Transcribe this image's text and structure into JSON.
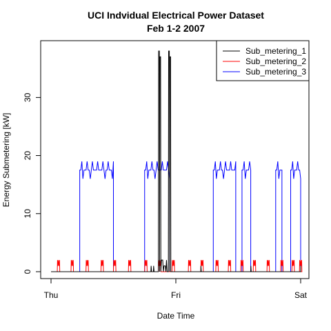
{
  "chart_data": {
    "type": "line",
    "title": "UCI Indvidual Electrical Power Dataset",
    "subtitle": "Feb 1-2 2007",
    "xlabel": "Date Time",
    "ylabel": "Energy Submetering [kW]",
    "x_ticks": [
      "Thu",
      "Fri",
      "Sat"
    ],
    "x_range_days": [
      0,
      2
    ],
    "ylim": [
      0,
      38
    ],
    "y_ticks": [
      0,
      10,
      20,
      30
    ],
    "grid": false,
    "legend_position": "top-right",
    "series": [
      {
        "name": "Sub_metering_1",
        "color": "#000000",
        "points": [
          [
            0.0,
            0
          ],
          [
            0.8,
            0
          ],
          [
            0.802,
            1
          ],
          [
            0.806,
            0
          ],
          [
            0.82,
            0
          ],
          [
            0.822,
            1
          ],
          [
            0.826,
            0
          ],
          [
            0.86,
            0
          ],
          [
            0.862,
            38
          ],
          [
            0.868,
            38
          ],
          [
            0.87,
            0
          ],
          [
            0.872,
            37
          ],
          [
            0.878,
            37
          ],
          [
            0.88,
            0
          ],
          [
            0.885,
            2
          ],
          [
            0.895,
            2
          ],
          [
            0.9,
            0
          ],
          [
            0.905,
            1
          ],
          [
            0.915,
            1
          ],
          [
            0.92,
            0
          ],
          [
            0.925,
            2
          ],
          [
            0.93,
            0
          ],
          [
            0.94,
            0
          ],
          [
            0.942,
            38
          ],
          [
            0.948,
            38
          ],
          [
            0.95,
            0
          ],
          [
            0.952,
            37
          ],
          [
            0.958,
            37
          ],
          [
            0.96,
            0
          ],
          [
            1.0,
            0
          ],
          [
            1.2,
            0
          ],
          [
            1.201,
            1
          ],
          [
            1.204,
            0
          ],
          [
            1.6,
            0
          ],
          [
            1.601,
            1
          ],
          [
            1.604,
            0
          ],
          [
            2.0,
            0
          ],
          [
            2.0,
            1
          ],
          [
            2.0,
            0
          ]
        ]
      },
      {
        "name": "Sub_metering_2",
        "color": "#ff0000",
        "bursts": [
          0.05,
          0.16,
          0.28,
          0.4,
          0.5,
          0.62,
          0.75,
          0.86,
          0.97,
          1.1,
          1.2,
          1.32,
          1.42,
          1.52,
          1.62,
          1.73,
          1.84,
          1.93,
          1.99
        ],
        "burst_width": 0.02,
        "burst_level": 2
      },
      {
        "name": "Sub_metering_3",
        "color": "#0000ff",
        "intervals": [
          {
            "start": 0.23,
            "end": 0.5,
            "level": 17.5
          },
          {
            "start": 0.75,
            "end": 0.95,
            "level": 17.5
          },
          {
            "start": 1.0,
            "end": 1.02,
            "level": 0
          },
          {
            "start": 1.3,
            "end": 1.48,
            "level": 17.5
          },
          {
            "start": 1.53,
            "end": 1.6,
            "level": 17.5
          },
          {
            "start": 1.8,
            "end": 1.85,
            "level": 17.5
          },
          {
            "start": 1.92,
            "end": 2.0,
            "level": 17.5
          }
        ],
        "spike_level": 19,
        "dip_level": 16
      }
    ]
  }
}
